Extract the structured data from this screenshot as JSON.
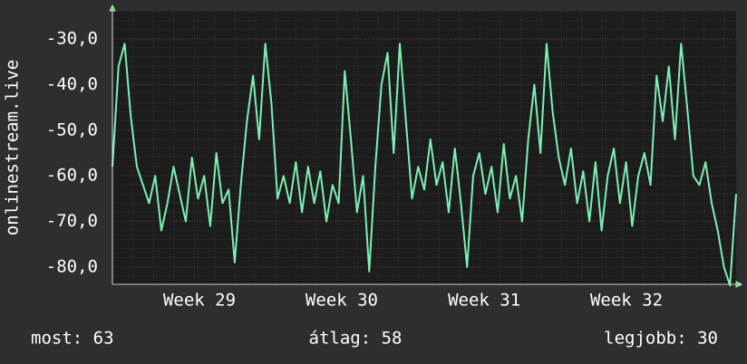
{
  "chart_data": {
    "type": "line",
    "ylabel": "onlinestream.live",
    "x": [
      0,
      0.3,
      0.6,
      0.9,
      1.2,
      1.5,
      1.8,
      2.1,
      2.4,
      2.7,
      3,
      3.3,
      3.6,
      3.9,
      4.2,
      4.5,
      4.8,
      5.1,
      5.4,
      5.7,
      6,
      6.3,
      6.6,
      6.9,
      7.2,
      7.5,
      7.8,
      8.1,
      8.4,
      8.7,
      9,
      9.3,
      9.6,
      9.9,
      10.2,
      10.5,
      10.8,
      11.1,
      11.4,
      11.7,
      12,
      12.3,
      12.6,
      12.9,
      13.2,
      13.5,
      13.8,
      14.1,
      14.4,
      14.7,
      15,
      15.3,
      15.6,
      15.9,
      16.2,
      16.5,
      16.8,
      17.1,
      17.4,
      17.7,
      18,
      18.3,
      18.6,
      18.9,
      19.2,
      19.5,
      19.8,
      20.1,
      20.4,
      20.7,
      21,
      21.3,
      21.6,
      21.9,
      22.2,
      22.5,
      22.8,
      23.1,
      23.4,
      23.7,
      24,
      24.3,
      24.6,
      24.9,
      25.2,
      25.5,
      25.8,
      26.1,
      26.4,
      26.7,
      27,
      27.3,
      27.6,
      27.9,
      28.2,
      28.5,
      28.8,
      29.1,
      29.4,
      29.7,
      30,
      30.3,
      30.6
    ],
    "series": [
      {
        "name": "onlinestream.live",
        "color": "#7cf0b4",
        "values": [
          -58,
          -36,
          -31,
          -47,
          -58,
          -62,
          -66,
          -60,
          -72,
          -66,
          -58,
          -64,
          -70,
          -56,
          -65,
          -60,
          -71,
          -55,
          -66,
          -63,
          -79,
          -62,
          -48,
          -38,
          -52,
          -31,
          -44,
          -65,
          -60,
          -66,
          -57,
          -68,
          -58,
          -66,
          -59,
          -70,
          -62,
          -66,
          -37,
          -52,
          -68,
          -60,
          -81,
          -58,
          -40,
          -33,
          -55,
          -31,
          -48,
          -65,
          -58,
          -63,
          -52,
          -62,
          -57,
          -68,
          -54,
          -66,
          -80,
          -60,
          -55,
          -64,
          -58,
          -68,
          -53,
          -65,
          -60,
          -70,
          -52,
          -40,
          -55,
          -31,
          -46,
          -56,
          -62,
          -54,
          -66,
          -59,
          -70,
          -57,
          -72,
          -60,
          -54,
          -66,
          -57,
          -71,
          -60,
          -55,
          -62,
          -38,
          -48,
          -36,
          -52,
          -31,
          -45,
          -60,
          -62,
          -57,
          -66,
          -72,
          -80,
          -84,
          -64
        ]
      }
    ],
    "xlim": [
      0,
      30.6
    ],
    "ylim": [
      -83.8,
      -23.8
    ],
    "xticks": [
      {
        "value": 4.27,
        "label": "Week 29"
      },
      {
        "value": 11.25,
        "label": "Week 30"
      },
      {
        "value": 18.24,
        "label": "Week 31"
      },
      {
        "value": 25.22,
        "label": "Week 32"
      }
    ],
    "yticks": [
      {
        "value": -80,
        "label": "-80,0"
      },
      {
        "value": -70,
        "label": "-70,0"
      },
      {
        "value": -60,
        "label": "-60,0"
      },
      {
        "value": -50,
        "label": "-50,0"
      },
      {
        "value": -40,
        "label": "-40,0"
      },
      {
        "value": -30,
        "label": "-30,0"
      }
    ],
    "grid": true,
    "footer": [
      "most: 63",
      "átlag: 58",
      "legjobb: 30"
    ]
  }
}
